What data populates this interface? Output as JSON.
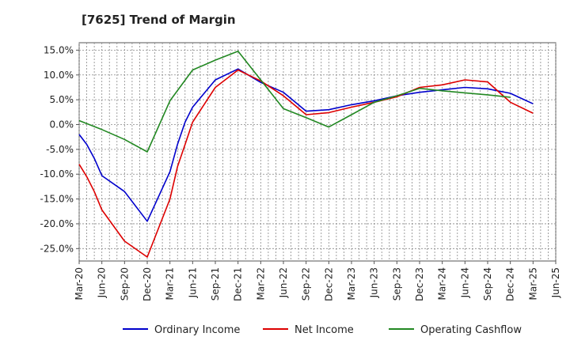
{
  "chart_data": {
    "type": "line",
    "title": "[7625]  Trend of Margin",
    "xlabel": "",
    "ylabel": "",
    "ylim": [
      -27.5,
      16.5
    ],
    "y_ticks": [
      "15.0%",
      "10.0%",
      "5.0%",
      "0.0%",
      "-5.0%",
      "-10.0%",
      "-15.0%",
      "-20.0%",
      "-25.0%"
    ],
    "y_tick_values": [
      15,
      10,
      5,
      0,
      -5,
      -10,
      -15,
      -20,
      -25
    ],
    "x_ticks": [
      "Mar-20",
      "Jun-20",
      "Sep-20",
      "Dec-20",
      "Mar-21",
      "Jun-21",
      "Sep-21",
      "Dec-21",
      "Mar-22",
      "Jun-22",
      "Sep-22",
      "Dec-22",
      "Mar-23",
      "Jun-23",
      "Sep-23",
      "Dec-23",
      "Mar-24",
      "Jun-24",
      "Sep-24",
      "Dec-24",
      "Mar-25",
      "Jun-25"
    ],
    "grid": true,
    "legend_position": "bottom",
    "series": [
      {
        "name": "Ordinary Income",
        "color": "#0000cc",
        "x": [
          "Mar-20",
          "Apr-20",
          "May-20",
          "Jun-20",
          "Sep-20",
          "Dec-20",
          "Mar-21",
          "Apr-21",
          "May-21",
          "Jun-21",
          "Sep-21",
          "Dec-21",
          "Mar-22",
          "Jun-22",
          "Sep-22",
          "Dec-22",
          "Mar-23",
          "Jun-23",
          "Sep-23",
          "Dec-23",
          "Mar-24",
          "Jun-24",
          "Sep-24",
          "Dec-24",
          "Mar-25"
        ],
        "values": [
          -2.0,
          -4.0,
          -6.8,
          -10.3,
          -13.5,
          -19.5,
          -9.5,
          -4.0,
          0.5,
          3.5,
          9.0,
          11.2,
          8.5,
          6.5,
          2.7,
          3.0,
          4.0,
          4.8,
          5.8,
          6.5,
          7.0,
          7.5,
          7.2,
          6.3,
          4.2
        ]
      },
      {
        "name": "Net Income",
        "color": "#dd0000",
        "x": [
          "Mar-20",
          "Apr-20",
          "May-20",
          "Jun-20",
          "Sep-20",
          "Dec-20",
          "Mar-21",
          "Apr-21",
          "May-21",
          "Jun-21",
          "Sep-21",
          "Dec-21",
          "Mar-22",
          "Jun-22",
          "Sep-22",
          "Dec-22",
          "Mar-23",
          "Jun-23",
          "Sep-23",
          "Dec-23",
          "Mar-24",
          "Jun-24",
          "Sep-24",
          "Dec-24",
          "Mar-25"
        ],
        "values": [
          -8.0,
          -10.5,
          -13.5,
          -17.2,
          -23.5,
          -26.7,
          -15.0,
          -8.5,
          -4.0,
          0.5,
          7.5,
          11.0,
          8.8,
          5.8,
          2.0,
          2.4,
          3.5,
          4.5,
          5.6,
          7.5,
          8.0,
          9.0,
          8.6,
          4.5,
          2.3
        ]
      },
      {
        "name": "Operating Cashflow",
        "color": "#228822",
        "x": [
          "Mar-20",
          "Jun-20",
          "Sep-20",
          "Dec-20",
          "Mar-21",
          "Jun-21",
          "Sep-21",
          "Dec-21",
          "Mar-22",
          "Jun-22",
          "Sep-22",
          "Dec-22",
          "Mar-23",
          "Jun-23",
          "Sep-23",
          "Dec-23",
          "Mar-24",
          "Jun-24",
          "Sep-24",
          "Dec-24"
        ],
        "values": [
          0.8,
          -1.0,
          -3.0,
          -5.5,
          4.8,
          11.0,
          13.0,
          14.8,
          9.0,
          3.2,
          1.4,
          -0.5,
          2.0,
          4.5,
          5.8,
          7.3,
          6.8,
          6.4,
          6.0,
          5.5
        ]
      }
    ]
  }
}
